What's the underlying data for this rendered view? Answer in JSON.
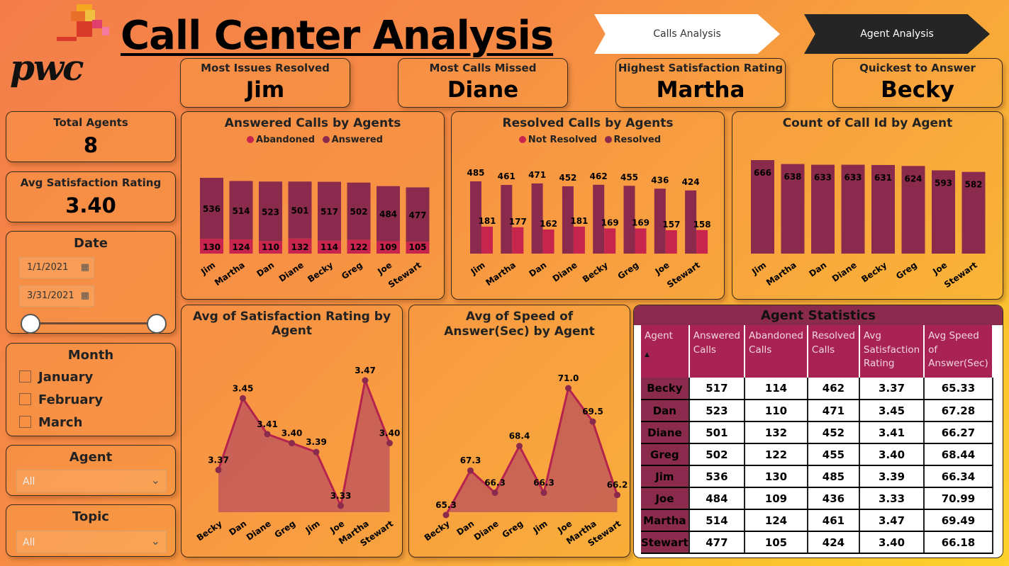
{
  "header": {
    "title": "Call Center Analysis",
    "logo_text": "pwc",
    "nav": [
      {
        "label": "Calls Analysis",
        "active": false
      },
      {
        "label": "Agent Analysis",
        "active": true
      }
    ]
  },
  "kpis": [
    {
      "label": "Most Issues Resolved",
      "value": "Jim"
    },
    {
      "label": "Most Calls Missed",
      "value": "Diane"
    },
    {
      "label": "Highest Satisfaction Rating",
      "value": "Martha"
    },
    {
      "label": "Quickest to Answer",
      "value": "Becky"
    }
  ],
  "sidebar": {
    "total_agents_label": "Total Agents",
    "total_agents_value": "8",
    "avg_rating_label": "Avg Satisfaction Rating",
    "avg_rating_value": "3.40",
    "date": {
      "title": "Date",
      "start": "1/1/2021",
      "end": "3/31/2021"
    },
    "month": {
      "title": "Month",
      "options": [
        "January",
        "February",
        "March"
      ]
    },
    "agent": {
      "title": "Agent",
      "selected": "All"
    },
    "topic": {
      "title": "Topic",
      "selected": "All"
    }
  },
  "colors": {
    "series_dark": "#8a2a4c",
    "series_pink": "#c7254e",
    "table_header": "#a82354"
  },
  "chart_data": [
    {
      "type": "bar",
      "title": "Answered Calls by Agents",
      "stacked": true,
      "categories": [
        "Jim",
        "Martha",
        "Dan",
        "Diane",
        "Becky",
        "Greg",
        "Joe",
        "Stewart"
      ],
      "series": [
        {
          "name": "Abandoned",
          "values": [
            130,
            124,
            110,
            132,
            114,
            122,
            109,
            105
          ]
        },
        {
          "name": "Answered",
          "values": [
            536,
            514,
            523,
            501,
            517,
            502,
            484,
            477
          ]
        }
      ],
      "legend": "top"
    },
    {
      "type": "bar",
      "title": "Resolved Calls by Agents",
      "stacked": false,
      "categories": [
        "Jim",
        "Martha",
        "Dan",
        "Diane",
        "Becky",
        "Greg",
        "Joe",
        "Stewart"
      ],
      "series": [
        {
          "name": "Not Resolved",
          "values": [
            181,
            177,
            162,
            181,
            169,
            169,
            157,
            158
          ]
        },
        {
          "name": "Resolved",
          "values": [
            485,
            461,
            471,
            452,
            462,
            455,
            436,
            424
          ]
        }
      ],
      "legend": "top"
    },
    {
      "type": "bar",
      "title": "Count of Call Id by Agent",
      "categories": [
        "Jim",
        "Martha",
        "Dan",
        "Diane",
        "Becky",
        "Greg",
        "Joe",
        "Stewart"
      ],
      "values": [
        666,
        638,
        633,
        633,
        631,
        624,
        593,
        582
      ]
    },
    {
      "type": "area",
      "title": "Avg of Satisfaction Rating by Agent",
      "categories": [
        "Becky",
        "Dan",
        "Diane",
        "Greg",
        "Jim",
        "Joe",
        "Martha",
        "Stewart"
      ],
      "values": [
        3.37,
        3.45,
        3.41,
        3.4,
        3.39,
        3.33,
        3.47,
        3.4
      ],
      "labels": [
        "3.37",
        "3.45",
        "3.41",
        "3.40",
        "3.39",
        "3.33",
        "3.47",
        "3.40"
      ]
    },
    {
      "type": "area",
      "title": "Avg of Speed of Answer(Sec) by Agent",
      "categories": [
        "Becky",
        "Dan",
        "Diane",
        "Greg",
        "Jim",
        "Joe",
        "Martha",
        "Stewart"
      ],
      "values": [
        65.3,
        67.3,
        66.3,
        68.4,
        66.3,
        71.0,
        69.5,
        66.2
      ],
      "labels": [
        "65.3",
        "67.3",
        "66.3",
        "68.4",
        "66.3",
        "71.0",
        "69.5",
        "66.2"
      ]
    }
  ],
  "agent_table": {
    "title": "Agent Statistics",
    "columns": [
      "Agent",
      "Answered Calls",
      "Abandoned Calls",
      "Resolved Calls",
      "Avg Satisfaction Rating",
      "Avg Speed of Answer(Sec)"
    ],
    "rows": [
      [
        "Becky",
        "517",
        "114",
        "462",
        "3.37",
        "65.33"
      ],
      [
        "Dan",
        "523",
        "110",
        "471",
        "3.45",
        "67.28"
      ],
      [
        "Diane",
        "501",
        "132",
        "452",
        "3.41",
        "66.27"
      ],
      [
        "Greg",
        "502",
        "122",
        "455",
        "3.40",
        "68.44"
      ],
      [
        "Jim",
        "536",
        "130",
        "485",
        "3.39",
        "66.34"
      ],
      [
        "Joe",
        "484",
        "109",
        "436",
        "3.33",
        "70.99"
      ],
      [
        "Martha",
        "514",
        "124",
        "461",
        "3.47",
        "69.49"
      ],
      [
        "Stewart",
        "477",
        "105",
        "424",
        "3.40",
        "66.18"
      ]
    ]
  }
}
